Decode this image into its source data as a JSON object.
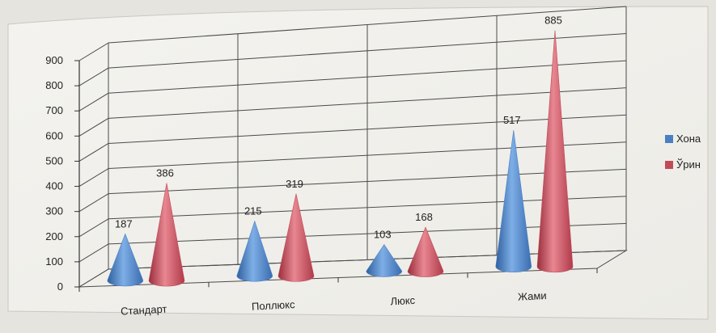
{
  "chart_data": {
    "type": "bar",
    "style": "3d-cone",
    "title": "",
    "xlabel": "",
    "ylabel": "",
    "categories": [
      "Стандарт",
      "Поллюкс",
      "Люкс",
      "Жами"
    ],
    "series": [
      {
        "name": "Хона",
        "values": [
          187,
          215,
          103,
          517
        ],
        "color": "#4a7fc4"
      },
      {
        "name": "Ўрин",
        "values": [
          386,
          319,
          168,
          885
        ],
        "color": "#c24a58"
      }
    ],
    "ylim": [
      0,
      900
    ],
    "yticks": [
      "0",
      "100",
      "200",
      "300",
      "400",
      "500",
      "600",
      "700",
      "800",
      "900"
    ],
    "grid": true,
    "legend": "right"
  }
}
